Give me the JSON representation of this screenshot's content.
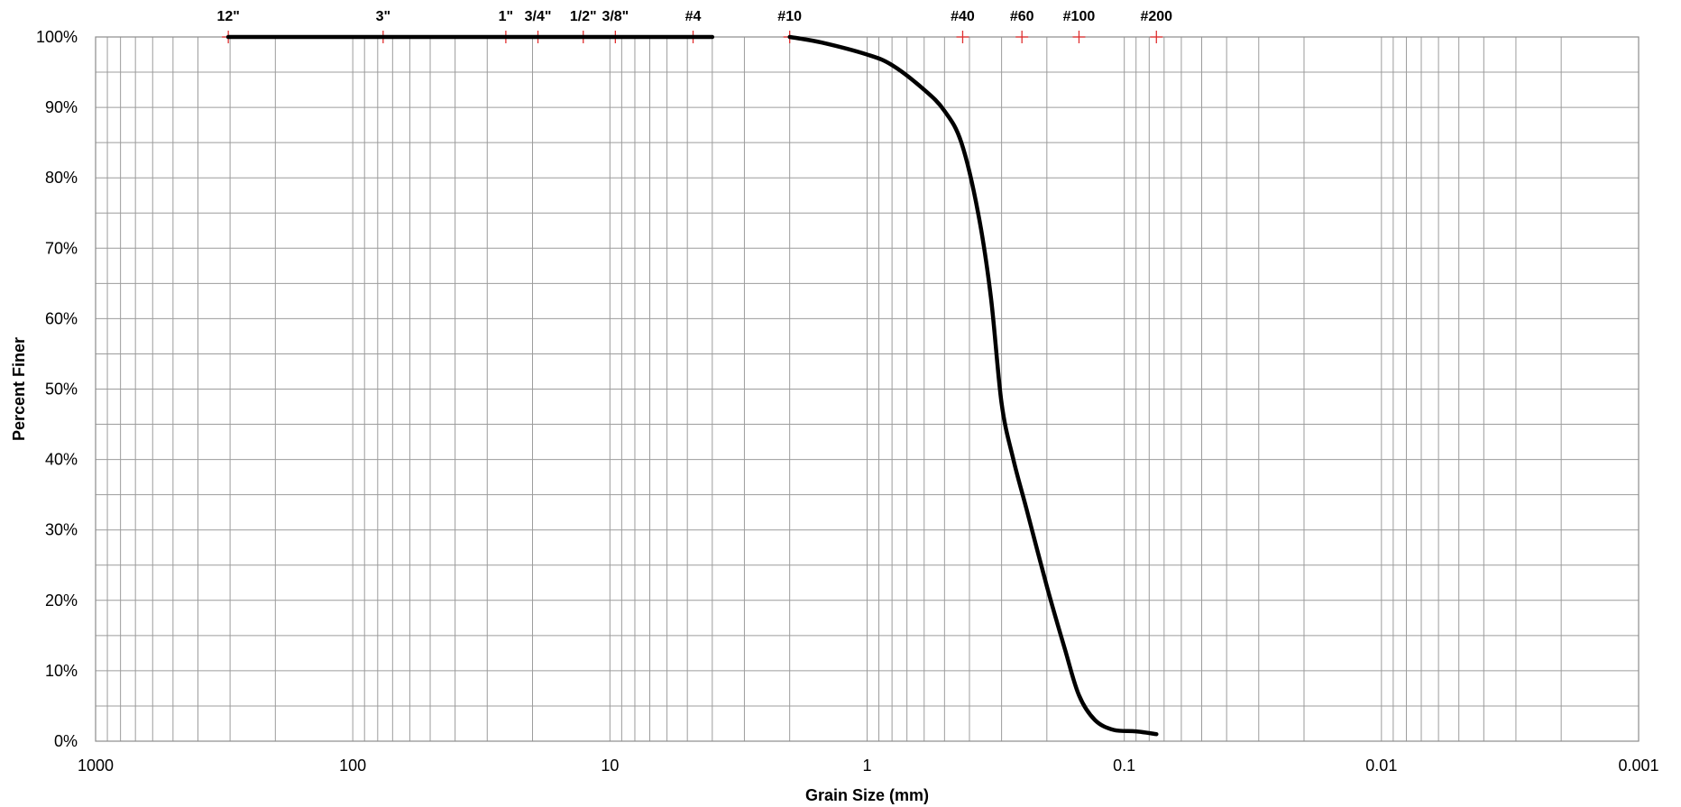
{
  "chart_data": {
    "type": "line",
    "title": "",
    "xlabel": "Grain Size (mm)",
    "ylabel": "Percent Finer",
    "x_scale": "log",
    "x_reversed": true,
    "xlim": [
      1000,
      0.001
    ],
    "ylim": [
      0,
      100
    ],
    "grid": true,
    "y_ticks": [
      {
        "value": 0,
        "label": "0%"
      },
      {
        "value": 10,
        "label": "10%"
      },
      {
        "value": 20,
        "label": "20%"
      },
      {
        "value": 30,
        "label": "30%"
      },
      {
        "value": 40,
        "label": "40%"
      },
      {
        "value": 50,
        "label": "50%"
      },
      {
        "value": 60,
        "label": "60%"
      },
      {
        "value": 70,
        "label": "70%"
      },
      {
        "value": 80,
        "label": "80%"
      },
      {
        "value": 90,
        "label": "90%"
      },
      {
        "value": 100,
        "label": "100%"
      }
    ],
    "x_ticks": [
      {
        "value": 1000,
        "label": "1000"
      },
      {
        "value": 100,
        "label": "100"
      },
      {
        "value": 10,
        "label": "10"
      },
      {
        "value": 1,
        "label": "1"
      },
      {
        "value": 0.1,
        "label": "0.1"
      },
      {
        "value": 0.01,
        "label": "0.01"
      },
      {
        "value": 0.001,
        "label": "0.001"
      }
    ],
    "sieves": [
      {
        "label": "12\"",
        "size_mm": 304.8
      },
      {
        "label": "3\"",
        "size_mm": 76.2
      },
      {
        "label": "1\"",
        "size_mm": 25.4
      },
      {
        "label": "3/4\"",
        "size_mm": 19.05
      },
      {
        "label": "1/2\"",
        "size_mm": 12.7
      },
      {
        "label": "3/8\"",
        "size_mm": 9.525
      },
      {
        "label": "#4",
        "size_mm": 4.75
      },
      {
        "label": "#10",
        "size_mm": 2.0
      },
      {
        "label": "#40",
        "size_mm": 0.425
      },
      {
        "label": "#60",
        "size_mm": 0.25
      },
      {
        "label": "#100",
        "size_mm": 0.15
      },
      {
        "label": "#200",
        "size_mm": 0.075
      }
    ],
    "series": [
      {
        "segments": [
          [
            {
              "x": 304.8,
              "y": 100
            },
            {
              "x": 76.2,
              "y": 100
            },
            {
              "x": 25.4,
              "y": 100
            },
            {
              "x": 19.05,
              "y": 100
            },
            {
              "x": 12.7,
              "y": 100
            },
            {
              "x": 9.525,
              "y": 100
            },
            {
              "x": 4.75,
              "y": 100
            },
            {
              "x": 4.0,
              "y": 100
            }
          ],
          [
            {
              "x": 2.0,
              "y": 100
            },
            {
              "x": 1.5,
              "y": 99.2
            },
            {
              "x": 1.0,
              "y": 97.5
            },
            {
              "x": 0.8,
              "y": 96.0
            },
            {
              "x": 0.6,
              "y": 92.5
            },
            {
              "x": 0.5,
              "y": 89.5
            },
            {
              "x": 0.43,
              "y": 85.0
            },
            {
              "x": 0.37,
              "y": 75.0
            },
            {
              "x": 0.33,
              "y": 63.0
            },
            {
              "x": 0.3,
              "y": 48.0
            },
            {
              "x": 0.27,
              "y": 40.0
            },
            {
              "x": 0.24,
              "y": 33.0
            },
            {
              "x": 0.2,
              "y": 22.0
            },
            {
              "x": 0.17,
              "y": 13.0
            },
            {
              "x": 0.15,
              "y": 6.5
            },
            {
              "x": 0.13,
              "y": 3.0
            },
            {
              "x": 0.11,
              "y": 1.6
            },
            {
              "x": 0.09,
              "y": 1.4
            },
            {
              "x": 0.075,
              "y": 1.0
            }
          ]
        ]
      }
    ]
  }
}
